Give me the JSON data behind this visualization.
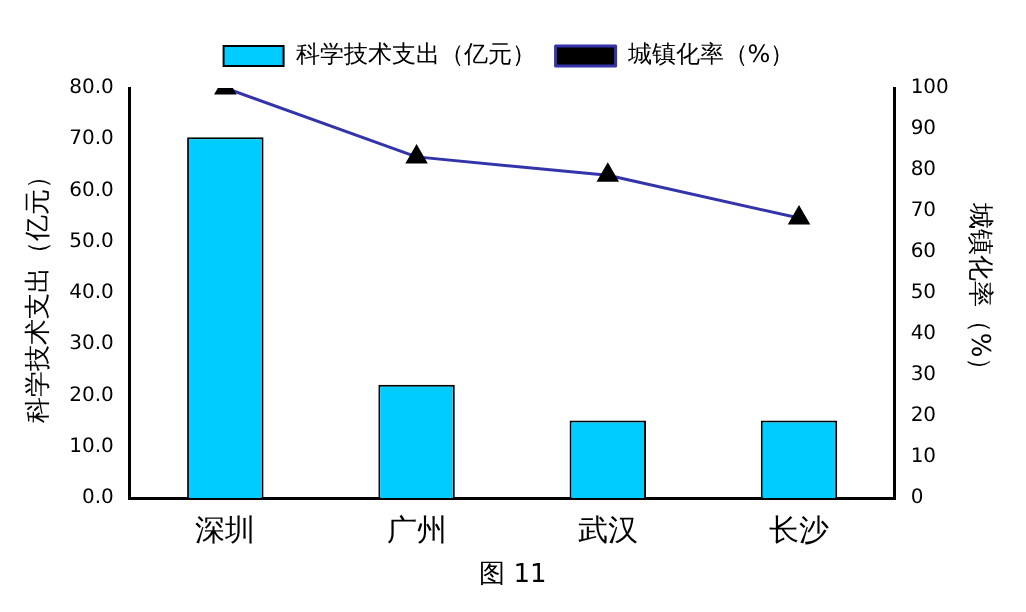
{
  "chart_data": {
    "type": "bar",
    "categories": [
      "深圳",
      "广州",
      "武汉",
      "长沙"
    ],
    "series": [
      {
        "name": "科学技术支出（亿元）",
        "color": "#00ccff",
        "values": [
          70.4,
          22.1,
          15.1,
          15.1
        ]
      },
      {
        "name": "城镇化率（%）",
        "type": "line",
        "axis": "y2",
        "color": "#3333aa",
        "values": [
          100,
          83.2,
          78.7,
          68.3
        ]
      }
    ],
    "ylabel": "科学技术支出（亿元）",
    "y2label": "城镇化率（%）",
    "ylim": [
      0,
      80
    ],
    "yticks": [
      {
        "value": 0,
        "label": "0.0"
      },
      {
        "value": 10,
        "label": "10.0"
      },
      {
        "value": 20,
        "label": "20.0"
      },
      {
        "value": 30,
        "label": "30.0"
      },
      {
        "value": 40,
        "label": "40.0"
      },
      {
        "value": 50,
        "label": "50.0"
      },
      {
        "value": 60,
        "label": "60.0"
      },
      {
        "value": 70,
        "label": "70.0"
      },
      {
        "value": 80,
        "label": "80.0"
      }
    ],
    "y2lim": [
      0,
      100
    ],
    "y2ticks": [
      0,
      10,
      20,
      30,
      40,
      50,
      60,
      70,
      80,
      90,
      100
    ],
    "annotations": [
      "图 11"
    ],
    "legend": "top",
    "grid": false,
    "marker": "triangle",
    "line_style": "solid"
  }
}
